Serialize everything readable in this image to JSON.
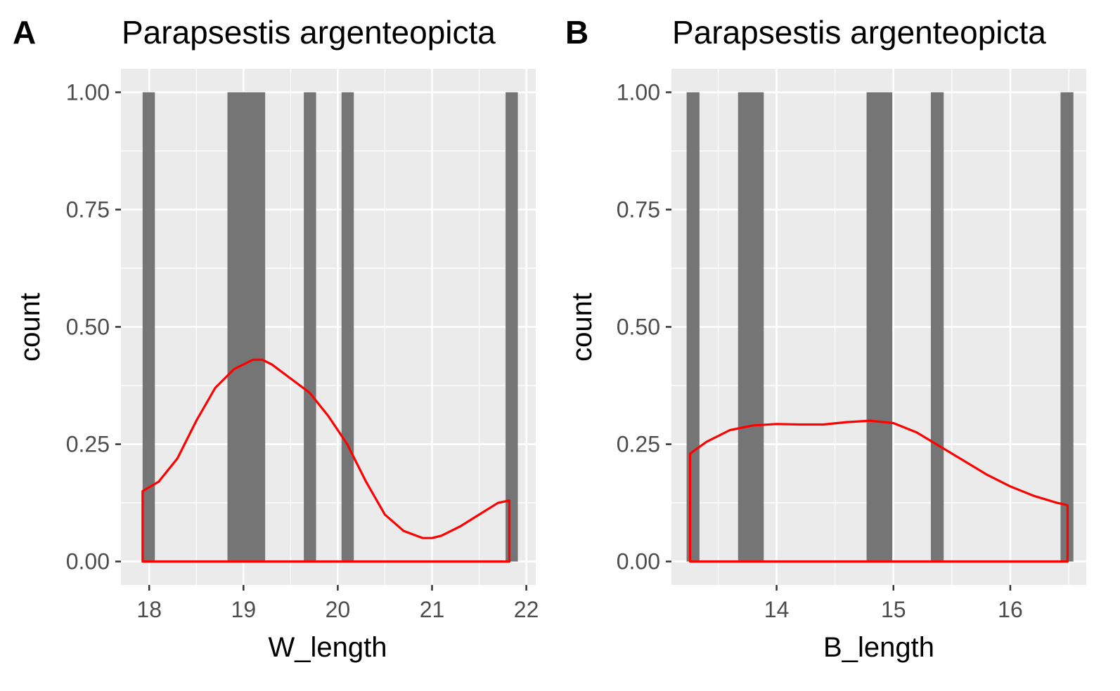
{
  "chart_data": [
    {
      "type": "bar",
      "panel_label": "A",
      "title": "Parapsestis argenteopicta",
      "xlabel": "W_length",
      "ylabel": "count",
      "xlim": [
        17.7,
        22.1
      ],
      "ylim": [
        -0.05,
        1.05
      ],
      "xticks": [
        18,
        19,
        20,
        21,
        22
      ],
      "xtick_labels": [
        "18",
        "19",
        "20",
        "21",
        "22"
      ],
      "xminor": [
        18.5,
        19.5,
        20.5,
        21.5
      ],
      "yticks": [
        0,
        0.25,
        0.5,
        0.75,
        1
      ],
      "ytick_labels": [
        "0.00",
        "0.25",
        "0.50",
        "0.75",
        "1.00"
      ],
      "bars": [
        {
          "x0": 17.93,
          "x1": 18.06,
          "count": 1
        },
        {
          "x0": 18.83,
          "x1": 19.23,
          "count": 1
        },
        {
          "x0": 19.64,
          "x1": 19.77,
          "count": 1
        },
        {
          "x0": 20.04,
          "x1": 20.17,
          "count": 1
        },
        {
          "x0": 21.78,
          "x1": 21.91,
          "count": 1
        }
      ],
      "density": {
        "color": "#ff0000",
        "x": [
          17.93,
          18.1,
          18.3,
          18.5,
          18.7,
          18.9,
          19.1,
          19.2,
          19.3,
          19.5,
          19.7,
          19.9,
          20.1,
          20.3,
          20.5,
          20.7,
          20.9,
          21.0,
          21.1,
          21.3,
          21.5,
          21.7,
          21.82
        ],
        "y": [
          0.15,
          0.17,
          0.22,
          0.3,
          0.37,
          0.41,
          0.43,
          0.43,
          0.42,
          0.39,
          0.36,
          0.31,
          0.25,
          0.17,
          0.1,
          0.065,
          0.05,
          0.05,
          0.055,
          0.075,
          0.1,
          0.125,
          0.13
        ]
      },
      "grid": true
    },
    {
      "type": "bar",
      "panel_label": "B",
      "title": "Parapsestis argenteopicta",
      "xlabel": "B_length",
      "ylabel": "count",
      "xlim": [
        13.1,
        16.65
      ],
      "ylim": [
        -0.05,
        1.05
      ],
      "xticks": [
        14,
        15,
        16
      ],
      "xtick_labels": [
        "14",
        "15",
        "16"
      ],
      "xminor": [
        13.5,
        14.5,
        15.5,
        16.5
      ],
      "yticks": [
        0,
        0.25,
        0.5,
        0.75,
        1
      ],
      "ytick_labels": [
        "0.00",
        "0.25",
        "0.50",
        "0.75",
        "1.00"
      ],
      "bars": [
        {
          "x0": 13.23,
          "x1": 13.34,
          "count": 1
        },
        {
          "x0": 13.67,
          "x1": 13.89,
          "count": 1
        },
        {
          "x0": 14.77,
          "x1": 14.99,
          "count": 1
        },
        {
          "x0": 15.32,
          "x1": 15.43,
          "count": 1
        },
        {
          "x0": 16.43,
          "x1": 16.54,
          "count": 1
        }
      ],
      "density": {
        "color": "#ff0000",
        "x": [
          13.26,
          13.4,
          13.6,
          13.8,
          14.0,
          14.2,
          14.4,
          14.6,
          14.8,
          15.0,
          15.2,
          15.4,
          15.6,
          15.8,
          16.0,
          16.2,
          16.4,
          16.49
        ],
        "y": [
          0.23,
          0.255,
          0.28,
          0.29,
          0.293,
          0.292,
          0.292,
          0.297,
          0.3,
          0.295,
          0.275,
          0.245,
          0.215,
          0.185,
          0.16,
          0.14,
          0.125,
          0.12
        ]
      },
      "grid": true
    }
  ]
}
